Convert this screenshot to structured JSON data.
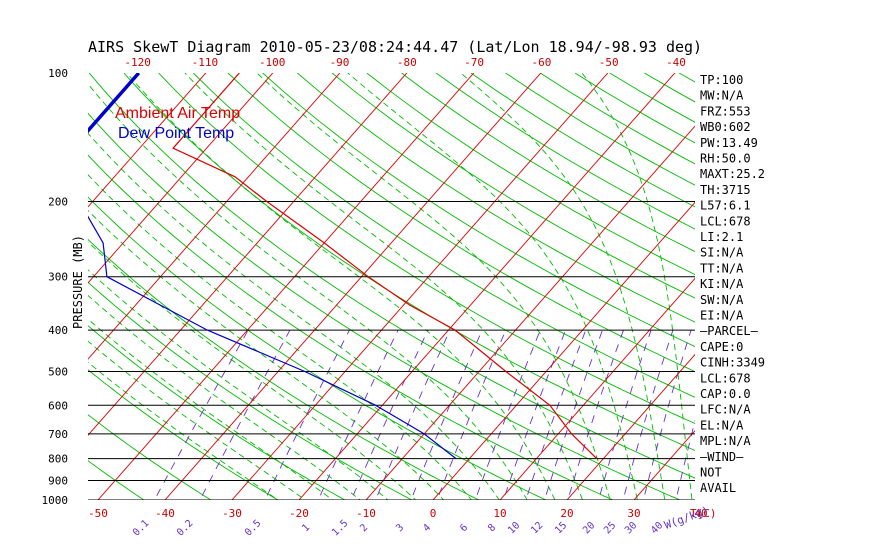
{
  "chart_data": {
    "type": "line",
    "title": "AIRS SkewT Diagram 2010-05-23/08:24:44.47 (Lat/Lon 18.94/-98.93 deg)",
    "ylabel": "PRESSURE (MB)",
    "xlabel": "T(C)",
    "mixing_ratio_unit": "W(g/kg)",
    "yscale": "log",
    "ylim": [
      1000,
      100
    ],
    "xlim": [
      -52,
      42
    ],
    "pressure_ticks": [
      100,
      200,
      300,
      400,
      500,
      600,
      700,
      800,
      900,
      1000
    ],
    "isobars": [
      200,
      300,
      400,
      500,
      600,
      700,
      800,
      900,
      1000
    ],
    "bottom_temp_ticks": [
      -50,
      -40,
      -30,
      -20,
      -10,
      0,
      10,
      20,
      30,
      40
    ],
    "top_temp_ticks": [
      -120,
      -110,
      -100,
      -90,
      -80,
      -70,
      -60,
      -50,
      -40
    ],
    "mixing_ratio_ticks": [
      "0.1",
      "0.2",
      "0.5",
      "1",
      "1.5",
      "2",
      "3",
      "4",
      "6",
      "8",
      "10",
      "12",
      "15",
      "20",
      "25",
      "30",
      "40"
    ],
    "legend": [
      "Ambient Air Temp",
      "Dew Point Temp"
    ],
    "series": [
      {
        "name": "Ambient Air Temp",
        "color": "#dd0000",
        "points": [
          {
            "p": 100,
            "t": -85
          },
          {
            "p": 150,
            "t": -85
          },
          {
            "p": 175,
            "t": -72
          },
          {
            "p": 200,
            "t": -64
          },
          {
            "p": 250,
            "t": -50
          },
          {
            "p": 300,
            "t": -39
          },
          {
            "p": 350,
            "t": -29
          },
          {
            "p": 400,
            "t": -19
          },
          {
            "p": 500,
            "t": -6
          },
          {
            "p": 600,
            "t": 5
          },
          {
            "p": 700,
            "t": 12
          },
          {
            "p": 800,
            "t": 19
          }
        ]
      },
      {
        "name": "Dew Point Temp",
        "color": "#0000cc",
        "points": [
          {
            "p": 100,
            "t": -100
          },
          {
            "p": 150,
            "t": -100
          },
          {
            "p": 200,
            "t": -92
          },
          {
            "p": 250,
            "t": -83
          },
          {
            "p": 300,
            "t": -78
          },
          {
            "p": 400,
            "t": -56
          },
          {
            "p": 500,
            "t": -36
          },
          {
            "p": 600,
            "t": -21
          },
          {
            "p": 700,
            "t": -10
          },
          {
            "p": 800,
            "t": -2
          }
        ]
      }
    ]
  },
  "stats": [
    "TP:100",
    "MW:N/A",
    "FRZ:553",
    "WB0:602",
    "PW:13.49",
    "RH:50.0",
    "MAXT:25.2",
    "TH:3715",
    "L57:6.1",
    "LCL:678",
    "LI:2.1",
    "SI:N/A",
    "TT:N/A",
    "KI:N/A",
    "SW:N/A",
    "EI:N/A",
    "–PARCEL–",
    "CAPE:0",
    "CINH:3349",
    "LCL:678",
    "CAP:0.0",
    "LFC:N/A",
    "EL:N/A",
    "MPL:N/A",
    "–WIND–",
    "NOT",
    "AVAIL"
  ],
  "colors": {
    "isotherm": "#dd0000",
    "dry_adiabat": "#00bb00",
    "moist_adiabat": "#00bb00",
    "mixing_ratio": "#6633cc",
    "isobar": "#000000",
    "top_axis": "#cc0000",
    "bottom_axis": "#cc0000",
    "mixing_axis": "#6633cc"
  }
}
